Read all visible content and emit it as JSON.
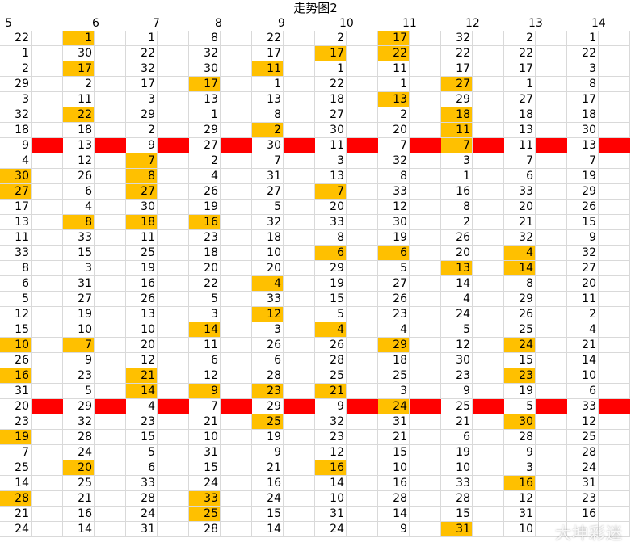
{
  "title": "走势图2",
  "watermark": "大坤彩迷",
  "colors": {
    "highlight": "#ffc000",
    "separator": "#ff0000",
    "grid": "#d9d9d9"
  },
  "headers": [
    "5",
    "6",
    "7",
    "8",
    "9",
    "10",
    "11",
    "12",
    "13",
    "14"
  ],
  "rows": [
    {
      "values": [
        "22",
        "1",
        "1",
        "8",
        "22",
        "2",
        "17",
        "32",
        "2",
        "1"
      ],
      "highlight": [
        1,
        6
      ],
      "separator": false
    },
    {
      "values": [
        "1",
        "30",
        "22",
        "32",
        "17",
        "17",
        "22",
        "22",
        "22",
        "22"
      ],
      "highlight": [
        5,
        6
      ],
      "separator": false
    },
    {
      "values": [
        "2",
        "17",
        "32",
        "30",
        "11",
        "1",
        "11",
        "17",
        "17",
        "3"
      ],
      "highlight": [
        1,
        4
      ],
      "separator": false
    },
    {
      "values": [
        "29",
        "2",
        "17",
        "17",
        "1",
        "22",
        "1",
        "27",
        "1",
        "8"
      ],
      "highlight": [
        3,
        7
      ],
      "separator": false
    },
    {
      "values": [
        "3",
        "11",
        "3",
        "13",
        "13",
        "18",
        "13",
        "29",
        "27",
        "17"
      ],
      "highlight": [
        6
      ],
      "separator": false
    },
    {
      "values": [
        "32",
        "22",
        "29",
        "1",
        "8",
        "27",
        "2",
        "18",
        "18",
        "18"
      ],
      "highlight": [
        1,
        7
      ],
      "separator": false
    },
    {
      "values": [
        "18",
        "18",
        "2",
        "29",
        "2",
        "30",
        "20",
        "11",
        "13",
        "30"
      ],
      "highlight": [
        4,
        7
      ],
      "separator": false
    },
    {
      "values": [
        "9",
        "13",
        "9",
        "27",
        "30",
        "11",
        "7",
        "7",
        "11",
        "13"
      ],
      "highlight": [
        7
      ],
      "separator": true
    },
    {
      "values": [
        "4",
        "12",
        "7",
        "2",
        "7",
        "3",
        "32",
        "3",
        "7",
        "7"
      ],
      "highlight": [
        2
      ],
      "separator": false
    },
    {
      "values": [
        "30",
        "26",
        "8",
        "4",
        "31",
        "13",
        "8",
        "1",
        "6",
        "19"
      ],
      "highlight": [
        0,
        2
      ],
      "separator": false
    },
    {
      "values": [
        "27",
        "6",
        "27",
        "26",
        "27",
        "7",
        "33",
        "16",
        "33",
        "29"
      ],
      "highlight": [
        0,
        2,
        5
      ],
      "separator": false
    },
    {
      "values": [
        "17",
        "4",
        "30",
        "19",
        "5",
        "20",
        "12",
        "8",
        "20",
        "26"
      ],
      "highlight": [],
      "separator": false
    },
    {
      "values": [
        "13",
        "8",
        "18",
        "16",
        "32",
        "33",
        "30",
        "2",
        "21",
        "15"
      ],
      "highlight": [
        1,
        2,
        3
      ],
      "separator": false
    },
    {
      "values": [
        "11",
        "33",
        "11",
        "23",
        "18",
        "8",
        "19",
        "26",
        "32",
        "9"
      ],
      "highlight": [],
      "separator": false
    },
    {
      "values": [
        "33",
        "15",
        "25",
        "18",
        "10",
        "6",
        "6",
        "20",
        "4",
        "32"
      ],
      "highlight": [
        5,
        6,
        8
      ],
      "separator": false
    },
    {
      "values": [
        "8",
        "3",
        "19",
        "20",
        "20",
        "29",
        "5",
        "13",
        "14",
        "27"
      ],
      "highlight": [
        7,
        8
      ],
      "separator": false
    },
    {
      "values": [
        "6",
        "31",
        "16",
        "22",
        "4",
        "19",
        "27",
        "14",
        "8",
        "20"
      ],
      "highlight": [
        4
      ],
      "separator": false
    },
    {
      "values": [
        "5",
        "27",
        "26",
        "5",
        "33",
        "15",
        "26",
        "4",
        "29",
        "11"
      ],
      "highlight": [],
      "separator": false
    },
    {
      "values": [
        "12",
        "19",
        "13",
        "3",
        "12",
        "5",
        "23",
        "24",
        "26",
        "2"
      ],
      "highlight": [
        4
      ],
      "separator": false
    },
    {
      "values": [
        "15",
        "10",
        "10",
        "14",
        "3",
        "4",
        "4",
        "5",
        "25",
        "4"
      ],
      "highlight": [
        3,
        5
      ],
      "separator": false
    },
    {
      "values": [
        "10",
        "7",
        "20",
        "11",
        "26",
        "26",
        "29",
        "12",
        "24",
        "21"
      ],
      "highlight": [
        0,
        1,
        6,
        8
      ],
      "separator": false
    },
    {
      "values": [
        "26",
        "9",
        "12",
        "6",
        "6",
        "28",
        "18",
        "30",
        "15",
        "14"
      ],
      "highlight": [],
      "separator": false
    },
    {
      "values": [
        "16",
        "23",
        "21",
        "12",
        "28",
        "25",
        "25",
        "23",
        "23",
        "10"
      ],
      "highlight": [
        0,
        2,
        8
      ],
      "separator": false
    },
    {
      "values": [
        "31",
        "5",
        "14",
        "9",
        "23",
        "21",
        "3",
        "9",
        "19",
        "6"
      ],
      "highlight": [
        2,
        3,
        4,
        5
      ],
      "separator": false
    },
    {
      "values": [
        "20",
        "29",
        "4",
        "7",
        "29",
        "9",
        "24",
        "25",
        "5",
        "33"
      ],
      "highlight": [
        6
      ],
      "separator": true
    },
    {
      "values": [
        "23",
        "32",
        "23",
        "21",
        "25",
        "32",
        "31",
        "21",
        "30",
        "12"
      ],
      "highlight": [
        4,
        8
      ],
      "separator": false
    },
    {
      "values": [
        "19",
        "28",
        "15",
        "10",
        "19",
        "23",
        "21",
        "6",
        "28",
        "25"
      ],
      "highlight": [
        0
      ],
      "separator": false
    },
    {
      "values": [
        "7",
        "24",
        "5",
        "31",
        "9",
        "12",
        "15",
        "19",
        "9",
        "28"
      ],
      "highlight": [],
      "separator": false
    },
    {
      "values": [
        "25",
        "20",
        "6",
        "15",
        "21",
        "16",
        "10",
        "10",
        "3",
        "24"
      ],
      "highlight": [
        1,
        5
      ],
      "separator": false
    },
    {
      "values": [
        "14",
        "25",
        "33",
        "24",
        "16",
        "14",
        "16",
        "33",
        "16",
        "31"
      ],
      "highlight": [
        8
      ],
      "separator": false
    },
    {
      "values": [
        "28",
        "21",
        "28",
        "33",
        "24",
        "10",
        "28",
        "28",
        "12",
        "23"
      ],
      "highlight": [
        0,
        3
      ],
      "separator": false
    },
    {
      "values": [
        "21",
        "16",
        "24",
        "25",
        "15",
        "31",
        "14",
        "15",
        "31",
        "16"
      ],
      "highlight": [
        3
      ],
      "separator": false
    },
    {
      "values": [
        "24",
        "14",
        "31",
        "28",
        "14",
        "24",
        "9",
        "31",
        "10",
        ""
      ],
      "highlight": [
        7
      ],
      "separator": false
    }
  ]
}
